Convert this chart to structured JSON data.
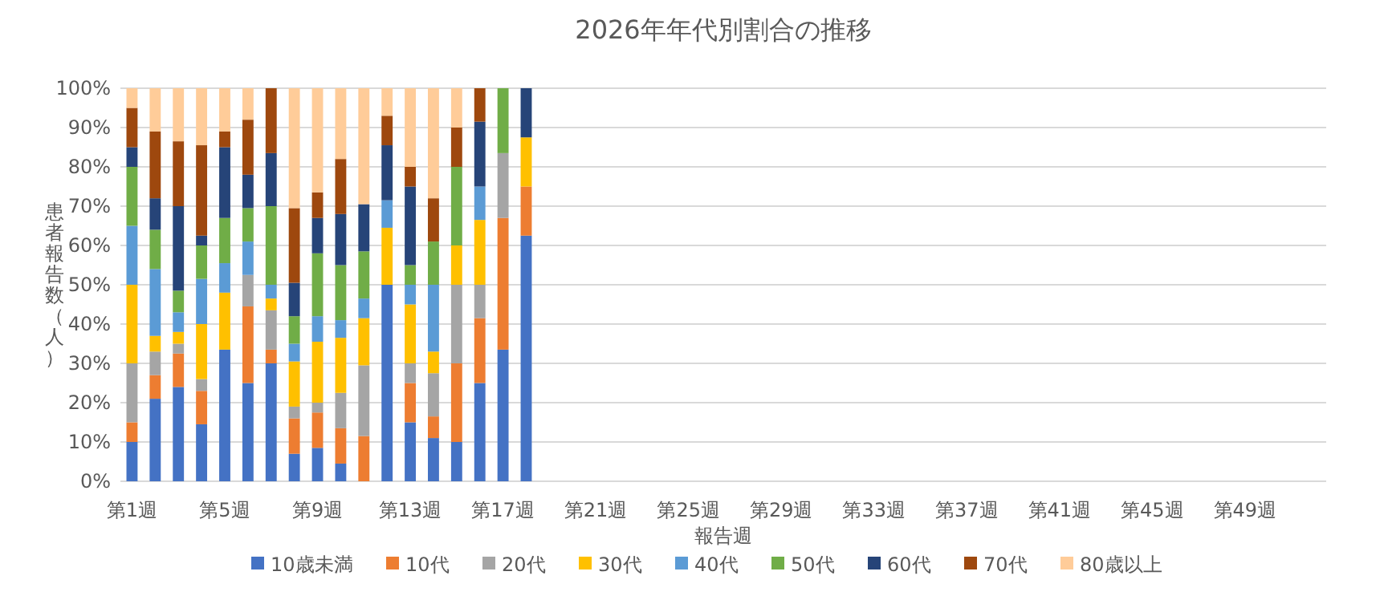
{
  "chart_data": {
    "type": "bar",
    "stacked": true,
    "title": "2026年年代別割合の推移",
    "xlabel": "報告週",
    "ylabel": "患者報告数（人）",
    "categories": [
      "第1週",
      null,
      null,
      null,
      "第5週",
      null,
      null,
      null,
      "第9週",
      null,
      null,
      null,
      "第13週",
      null,
      null,
      null,
      "第17週",
      null,
      null,
      null,
      "第21週",
      null,
      null,
      null,
      "第25週",
      null,
      null,
      null,
      "第29週",
      null,
      null,
      null,
      "第33週",
      null,
      null,
      null,
      "第37週",
      null,
      null,
      null,
      "第41週",
      null,
      null,
      null,
      "第45週",
      null,
      null,
      null,
      "第49週",
      null,
      null,
      null
    ],
    "ylim": [
      0,
      100
    ],
    "yticks": [
      {
        "value": 0,
        "label": "0%"
      },
      {
        "value": 10,
        "label": "10%"
      },
      {
        "value": 20,
        "label": "20%"
      },
      {
        "value": 30,
        "label": "30%"
      },
      {
        "value": 40,
        "label": "40%"
      },
      {
        "value": 50,
        "label": "50%"
      },
      {
        "value": 60,
        "label": "60%"
      },
      {
        "value": 70,
        "label": "70%"
      },
      {
        "value": 80,
        "label": "80%"
      },
      {
        "value": 90,
        "label": "90%"
      },
      {
        "value": 100,
        "label": "100%"
      }
    ],
    "grid": "y",
    "legend": "bottom",
    "series": [
      {
        "name": "10歳未満",
        "color": "#4472c4",
        "values": [
          10,
          21,
          24,
          14.5,
          33.5,
          25,
          30,
          7,
          8.5,
          4.5,
          0,
          50,
          15,
          11,
          10,
          25,
          33.5,
          62.5,
          null,
          null,
          null,
          null,
          null,
          null,
          null,
          null,
          null,
          null,
          null,
          null,
          null,
          null,
          null,
          null,
          null,
          null,
          null,
          null,
          null,
          null,
          null,
          null,
          null,
          null,
          null,
          null,
          null,
          null,
          null,
          null,
          null,
          null
        ]
      },
      {
        "name": "10代",
        "color": "#ed7d31",
        "values": [
          5,
          6,
          8.5,
          8.5,
          0,
          19.5,
          3.5,
          9,
          9,
          9,
          11.5,
          0,
          10,
          5.5,
          20,
          16.5,
          33.5,
          12.5,
          null,
          null,
          null,
          null,
          null,
          null,
          null,
          null,
          null,
          null,
          null,
          null,
          null,
          null,
          null,
          null,
          null,
          null,
          null,
          null,
          null,
          null,
          null,
          null,
          null,
          null,
          null,
          null,
          null,
          null,
          null,
          null,
          null,
          null
        ]
      },
      {
        "name": "20代",
        "color": "#a5a5a5",
        "values": [
          15,
          6,
          2.5,
          3,
          0,
          8,
          10,
          3,
          2.5,
          9,
          18,
          0,
          5,
          11,
          20,
          8.5,
          16.5,
          0,
          null,
          null,
          null,
          null,
          null,
          null,
          null,
          null,
          null,
          null,
          null,
          null,
          null,
          null,
          null,
          null,
          null,
          null,
          null,
          null,
          null,
          null,
          null,
          null,
          null,
          null,
          null,
          null,
          null,
          null,
          null,
          null,
          null,
          null
        ]
      },
      {
        "name": "30代",
        "color": "#ffc000",
        "values": [
          20,
          4,
          3,
          14,
          14.5,
          0,
          3,
          11.5,
          15.5,
          14,
          12,
          14.5,
          15,
          5.5,
          10,
          16.5,
          0,
          12.5,
          null,
          null,
          null,
          null,
          null,
          null,
          null,
          null,
          null,
          null,
          null,
          null,
          null,
          null,
          null,
          null,
          null,
          null,
          null,
          null,
          null,
          null,
          null,
          null,
          null,
          null,
          null,
          null,
          null,
          null,
          null,
          null,
          null,
          null
        ]
      },
      {
        "name": "40代",
        "color": "#5b9bd5",
        "values": [
          15,
          17,
          5,
          11.5,
          7.5,
          8.5,
          3.5,
          4.5,
          6.5,
          4.5,
          5,
          7,
          5,
          17,
          0,
          8.5,
          0,
          0,
          null,
          null,
          null,
          null,
          null,
          null,
          null,
          null,
          null,
          null,
          null,
          null,
          null,
          null,
          null,
          null,
          null,
          null,
          null,
          null,
          null,
          null,
          null,
          null,
          null,
          null,
          null,
          null,
          null,
          null,
          null,
          null,
          null,
          null
        ]
      },
      {
        "name": "50代",
        "color": "#70ad47",
        "values": [
          15,
          10,
          5.5,
          8.5,
          11.5,
          8.5,
          20,
          7,
          16,
          14,
          12,
          0,
          5,
          11,
          20,
          0,
          16.5,
          0,
          null,
          null,
          null,
          null,
          null,
          null,
          null,
          null,
          null,
          null,
          null,
          null,
          null,
          null,
          null,
          null,
          null,
          null,
          null,
          null,
          null,
          null,
          null,
          null,
          null,
          null,
          null,
          null,
          null,
          null,
          null,
          null,
          null,
          null
        ]
      },
      {
        "name": "60代",
        "color": "#264478",
        "values": [
          5,
          8,
          21.5,
          2.5,
          18,
          8.5,
          13.5,
          8.5,
          9,
          13,
          12,
          14,
          20,
          0,
          0,
          16.5,
          0,
          12.5,
          null,
          null,
          null,
          null,
          null,
          null,
          null,
          null,
          null,
          null,
          null,
          null,
          null,
          null,
          null,
          null,
          null,
          null,
          null,
          null,
          null,
          null,
          null,
          null,
          null,
          null,
          null,
          null,
          null,
          null,
          null,
          null,
          null,
          null
        ]
      },
      {
        "name": "70代",
        "color": "#9e480e",
        "values": [
          10,
          17,
          16.5,
          23,
          4,
          14,
          16.5,
          19,
          6.5,
          14,
          0,
          7.5,
          5,
          11,
          10,
          8.5,
          0,
          0,
          null,
          null,
          null,
          null,
          null,
          null,
          null,
          null,
          null,
          null,
          null,
          null,
          null,
          null,
          null,
          null,
          null,
          null,
          null,
          null,
          null,
          null,
          null,
          null,
          null,
          null,
          null,
          null,
          null,
          null,
          null,
          null,
          null,
          null
        ]
      },
      {
        "name": "80歳以上",
        "color": "#ffcc99",
        "values": [
          5,
          11,
          13.5,
          14.5,
          11,
          8,
          0,
          30.5,
          26.5,
          18,
          29.5,
          7,
          20,
          28,
          10,
          0,
          0,
          0,
          null,
          null,
          null,
          null,
          null,
          null,
          null,
          null,
          null,
          null,
          null,
          null,
          null,
          null,
          null,
          null,
          null,
          null,
          null,
          null,
          null,
          null,
          null,
          null,
          null,
          null,
          null,
          null,
          null,
          null,
          null,
          null,
          null,
          null
        ]
      }
    ]
  }
}
